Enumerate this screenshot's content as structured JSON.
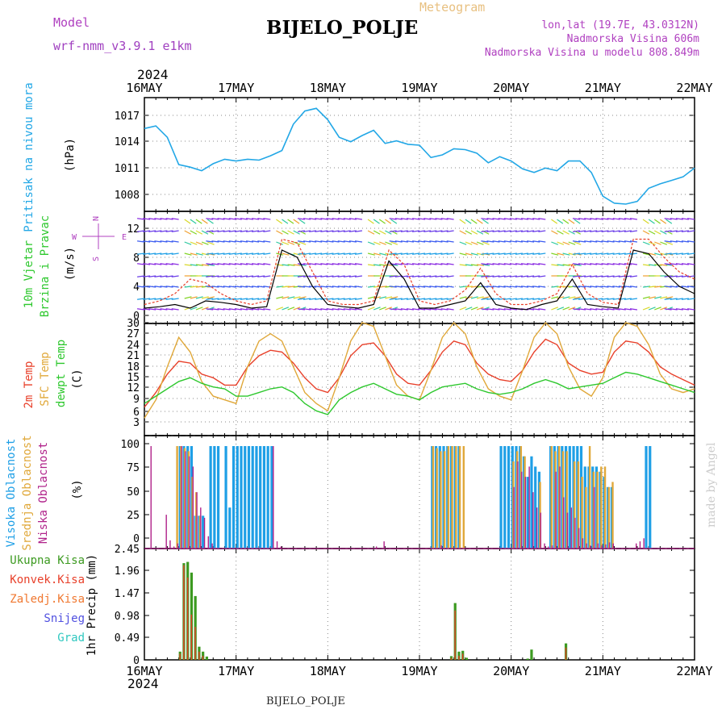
{
  "header": {
    "model_label": "Model",
    "model_name": "wrf-nmm_v3.9.1 e1km",
    "title": "BIJELO_POLJE",
    "meteogram": "Meteogram",
    "lonlat": "lon,lat (19.7E, 43.0312N)",
    "elevation": "Nadmorska Visina 606m",
    "model_elevation": "Nadmorska Visina u modelu 808.849m",
    "credit": "made by Angel",
    "footer": "BIJELO_POLJE",
    "year": "2024"
  },
  "colors": {
    "pressure": "#22a7e6",
    "wind_speed": "#000000",
    "wind_gust": "#e8402a",
    "temp2m": "#e8402a",
    "sfc_temp": "#e0a83a",
    "dewpoint": "#2ec82e",
    "cloud_high": "#1e9fe6",
    "cloud_mid": "#e0a83a",
    "cloud_low": "#b0228a",
    "precip_total": "#3c9a20",
    "precip_conv": "#e8402a",
    "grid": "#888888"
  },
  "time_axis": {
    "ticks": [
      "16MAY",
      "17MAY",
      "18MAY",
      "19MAY",
      "20MAY",
      "21MAY",
      "22MAY"
    ],
    "range_hours": [
      0,
      144
    ]
  },
  "chart_data": [
    {
      "type": "line",
      "panel": "pressure",
      "ylabel": "Pritisak na nivou mora",
      "unit": "(hPa)",
      "yticks": [
        "1008",
        "1011",
        "1014",
        "1017"
      ],
      "ylim": [
        1006,
        1019.5
      ],
      "series": [
        {
          "x": [
            0,
            3,
            6,
            9,
            12,
            15,
            18,
            21,
            24,
            27,
            30,
            33,
            36,
            39,
            42,
            45,
            48,
            51,
            54,
            57,
            60,
            63,
            66,
            69,
            72,
            75,
            78,
            81,
            84,
            87,
            90,
            93,
            96,
            99,
            102,
            105,
            108,
            111,
            114,
            117,
            120,
            123,
            126,
            129,
            132,
            135,
            138,
            141,
            144
          ],
          "values": [
            1015.5,
            1015.8,
            1014.5,
            1011.4,
            1011.1,
            1010.7,
            1011.5,
            1012.0,
            1011.8,
            1012.0,
            1011.9,
            1012.4,
            1013.0,
            1016.0,
            1017.5,
            1017.8,
            1016.5,
            1014.5,
            1014.0,
            1014.7,
            1015.3,
            1013.8,
            1014.1,
            1013.7,
            1013.6,
            1012.2,
            1012.5,
            1013.2,
            1013.1,
            1012.7,
            1011.6,
            1012.3,
            1011.8,
            1010.9,
            1010.5,
            1011.0,
            1010.7,
            1011.8,
            1011.8,
            1010.5,
            1007.8,
            1007.0,
            1006.9,
            1007.2,
            1008.7,
            1009.2,
            1009.6,
            1010.0,
            1011.0
          ]
        }
      ]
    },
    {
      "type": "line",
      "panel": "wind",
      "ylabel": "10m Vjetar Brzina i Pravac",
      "unit": "(m/s)",
      "compass": [
        "N",
        "W",
        "E",
        "S"
      ],
      "yticks": [
        "0",
        "4",
        "8",
        "12"
      ],
      "ylim": [
        -1,
        14
      ],
      "series": [
        {
          "name": "speed",
          "x": [
            0,
            4,
            8,
            12,
            16,
            20,
            24,
            28,
            32,
            36,
            40,
            44,
            48,
            52,
            56,
            60,
            64,
            68,
            72,
            76,
            80,
            84,
            88,
            92,
            96,
            100,
            104,
            108,
            112,
            116,
            120,
            124,
            128,
            132,
            136,
            140,
            144
          ],
          "values": [
            1,
            1.2,
            1.5,
            1,
            2,
            1.8,
            1.5,
            1,
            1.2,
            9,
            8,
            4,
            1.5,
            1.2,
            1,
            1.5,
            7.5,
            5,
            1,
            1,
            1.5,
            2,
            4.5,
            1.5,
            1,
            0.8,
            1.5,
            2,
            5,
            1.5,
            1.2,
            1,
            9,
            8.5,
            6,
            4,
            3
          ]
        },
        {
          "name": "gust",
          "x": [
            0,
            4,
            8,
            12,
            16,
            20,
            24,
            28,
            32,
            36,
            40,
            44,
            48,
            52,
            56,
            60,
            64,
            68,
            72,
            76,
            80,
            84,
            88,
            92,
            96,
            100,
            104,
            108,
            112,
            116,
            120,
            124,
            128,
            132,
            136,
            140,
            144
          ],
          "values": [
            1.5,
            2,
            3,
            5,
            4.5,
            3,
            2,
            1.5,
            2,
            10.5,
            10,
            6,
            2,
            1.5,
            1.5,
            2,
            9,
            7,
            2,
            1.5,
            2,
            3.5,
            6.5,
            3,
            1.5,
            1.5,
            2,
            3,
            7,
            3,
            1.8,
            1.5,
            10.5,
            10.5,
            8,
            6,
            5
          ]
        }
      ]
    },
    {
      "type": "line",
      "panel": "temperature",
      "ylabel": [
        "2m Temp",
        "SFC Temp",
        "dewpt Temp"
      ],
      "unit": "(C)",
      "yticks": [
        "3",
        "6",
        "9",
        "12",
        "15",
        "18",
        "21",
        "24",
        "27",
        "30"
      ],
      "ylim": [
        3,
        32
      ],
      "series": [
        {
          "name": "2m Temp",
          "x": [
            0,
            3,
            6,
            9,
            12,
            15,
            18,
            21,
            24,
            27,
            30,
            33,
            36,
            39,
            42,
            45,
            48,
            51,
            54,
            57,
            60,
            63,
            66,
            69,
            72,
            75,
            78,
            81,
            84,
            87,
            90,
            93,
            96,
            99,
            102,
            105,
            108,
            111,
            114,
            117,
            120,
            123,
            126,
            129,
            132,
            135,
            138,
            141,
            144
          ],
          "values": [
            7,
            11,
            16,
            19.5,
            19,
            16,
            15,
            13,
            13,
            18,
            21,
            22.5,
            22,
            19,
            15,
            12,
            11,
            15,
            21,
            24,
            24.5,
            21,
            16,
            13.5,
            13,
            17,
            22,
            25,
            24,
            19,
            16,
            14.5,
            14,
            17,
            22,
            25.5,
            24,
            19,
            17,
            16,
            16.5,
            22,
            25,
            24.5,
            22,
            18,
            16,
            14.5,
            13
          ]
        },
        {
          "name": "SFC Temp",
          "x": [
            0,
            3,
            6,
            9,
            12,
            15,
            18,
            21,
            24,
            27,
            30,
            33,
            36,
            39,
            42,
            45,
            48,
            51,
            54,
            57,
            60,
            63,
            66,
            69,
            72,
            75,
            78,
            81,
            84,
            87,
            90,
            93,
            96,
            99,
            102,
            105,
            108,
            111,
            114,
            117,
            120,
            123,
            126,
            129,
            132,
            135,
            138,
            141,
            144
          ],
          "values": [
            4,
            9,
            18,
            26,
            22,
            14,
            10,
            9,
            8,
            18,
            25,
            27,
            25,
            18,
            11,
            8,
            6,
            15,
            25,
            30,
            29,
            21,
            13,
            10,
            9,
            17,
            26,
            30,
            27,
            18,
            12,
            10,
            9,
            17,
            26,
            30,
            27,
            18,
            12,
            10,
            15,
            26,
            30,
            29,
            24,
            16,
            12,
            11,
            12
          ]
        },
        {
          "name": "dewpt Temp",
          "x": [
            0,
            3,
            6,
            9,
            12,
            15,
            18,
            21,
            24,
            27,
            30,
            33,
            36,
            39,
            42,
            45,
            48,
            51,
            54,
            57,
            60,
            63,
            66,
            69,
            72,
            75,
            78,
            81,
            84,
            87,
            90,
            93,
            96,
            99,
            102,
            105,
            108,
            111,
            114,
            117,
            120,
            123,
            126,
            129,
            132,
            135,
            138,
            141,
            144
          ],
          "values": [
            8,
            10,
            12,
            14,
            15,
            13.5,
            12.5,
            12,
            10,
            10,
            11,
            12,
            12.5,
            11,
            8,
            6,
            5,
            9,
            11,
            12.5,
            13.5,
            12,
            10.5,
            10,
            9,
            11,
            12.5,
            13,
            13.5,
            12,
            11,
            10.5,
            11,
            12,
            13.5,
            14.5,
            13.5,
            12,
            12.5,
            13,
            13.5,
            15,
            16.5,
            16,
            15,
            14,
            13,
            12,
            11
          ]
        }
      ]
    },
    {
      "type": "bar",
      "panel": "cloud",
      "ylabel": [
        "Visoka Oblacnost",
        "Srednja Oblacnost",
        "Niska Oblacnost"
      ],
      "unit": "(%)",
      "yticks": [
        "0",
        "25",
        "50",
        "75",
        "100"
      ],
      "ylim": [
        0,
        100
      ],
      "series": [
        {
          "name": "Visoka Oblacnost",
          "x": [
            9,
            10,
            11,
            12,
            13,
            14,
            15,
            17,
            18,
            19,
            21,
            22,
            23,
            24,
            25,
            26,
            27,
            28,
            29,
            30,
            31,
            32,
            33,
            75,
            76,
            77,
            78,
            79,
            80,
            81,
            82,
            93,
            94,
            95,
            96,
            97,
            98,
            99,
            100,
            101,
            102,
            103,
            106,
            107,
            108,
            109,
            110,
            111,
            112,
            113,
            114,
            115,
            116,
            117,
            118,
            119,
            120,
            121,
            122,
            131,
            132
          ],
          "values": [
            100,
            100,
            100,
            100,
            32,
            32,
            32,
            100,
            100,
            100,
            100,
            40,
            100,
            100,
            100,
            100,
            100,
            100,
            100,
            100,
            100,
            100,
            100,
            100,
            100,
            100,
            100,
            100,
            100,
            100,
            100,
            100,
            100,
            100,
            100,
            100,
            100,
            90,
            70,
            90,
            80,
            75,
            100,
            100,
            100,
            100,
            100,
            100,
            100,
            100,
            100,
            80,
            80,
            80,
            80,
            75,
            70,
            60,
            60,
            100,
            100
          ]
        },
        {
          "name": "Srednja Oblacnost",
          "x": [
            8,
            9,
            10,
            11,
            12,
            13,
            14,
            75,
            76,
            77,
            78,
            79,
            80,
            81,
            82,
            83,
            96,
            97,
            98,
            99,
            103,
            106,
            107,
            108,
            109,
            110,
            112,
            113,
            114,
            115,
            116,
            117,
            118,
            119,
            120,
            121,
            122
          ],
          "values": [
            100,
            100,
            98,
            95,
            70,
            55,
            32,
            100,
            98,
            95,
            95,
            100,
            100,
            100,
            100,
            100,
            85,
            95,
            100,
            90,
            65,
            100,
            95,
            100,
            95,
            95,
            85,
            85,
            70,
            60,
            100,
            75,
            75,
            80,
            80,
            60,
            65
          ]
        },
        {
          "name": "Niska Oblacnost",
          "x": [
            1,
            5,
            6,
            7,
            8,
            9,
            10,
            11,
            12,
            13,
            14,
            15,
            16,
            17,
            33,
            34,
            35,
            60,
            62,
            77,
            96,
            97,
            98,
            99,
            100,
            101,
            102,
            103,
            104,
            105,
            106,
            107,
            108,
            109,
            110,
            111,
            112,
            113,
            114,
            115,
            116,
            117,
            118,
            119,
            120,
            121,
            122,
            128,
            129,
            130
          ],
          "values": [
            100,
            33,
            8,
            2,
            5,
            100,
            95,
            90,
            80,
            55,
            40,
            30,
            12,
            5,
            100,
            7,
            2,
            2,
            7,
            3,
            60,
            85,
            75,
            70,
            80,
            55,
            40,
            35,
            5,
            2,
            3,
            75,
            80,
            50,
            35,
            40,
            30,
            20,
            10,
            5,
            3,
            60,
            5,
            3,
            4,
            6,
            5,
            5,
            7,
            10
          ]
        }
      ]
    },
    {
      "type": "bar",
      "panel": "precip",
      "ylabel": "1hr Precip",
      "unit": "(mm)",
      "legend": [
        "Ukupna Kisa",
        "Konvek.Kisa",
        "Zaledj.Kisa",
        "Snijeg",
        "Grad"
      ],
      "yticks": [
        "0",
        "0.49",
        "0.98",
        "1.47",
        "1.96",
        "2.45"
      ],
      "ylim": [
        0,
        2.45
      ],
      "series": [
        {
          "name": "Ukupna Kisa",
          "x": [
            9,
            10,
            11,
            12,
            13,
            14,
            15,
            16,
            80,
            81,
            82,
            83,
            84,
            100,
            101,
            110
          ],
          "values": [
            0.2,
            2.35,
            2.38,
            2.12,
            1.55,
            0.32,
            0.2,
            0.08,
            0.09,
            1.38,
            0.2,
            0.22,
            0.05,
            0.03,
            0.25,
            0.4
          ]
        },
        {
          "name": "Konvek.Kisa",
          "x": [
            9,
            10,
            11,
            12,
            13,
            14,
            15,
            80,
            81,
            82,
            83,
            110
          ],
          "values": [
            0.15,
            2.3,
            2.0,
            1.1,
            0.8,
            0.2,
            0.1,
            0.05,
            1.2,
            0.1,
            0.15,
            0.3
          ]
        }
      ]
    }
  ]
}
